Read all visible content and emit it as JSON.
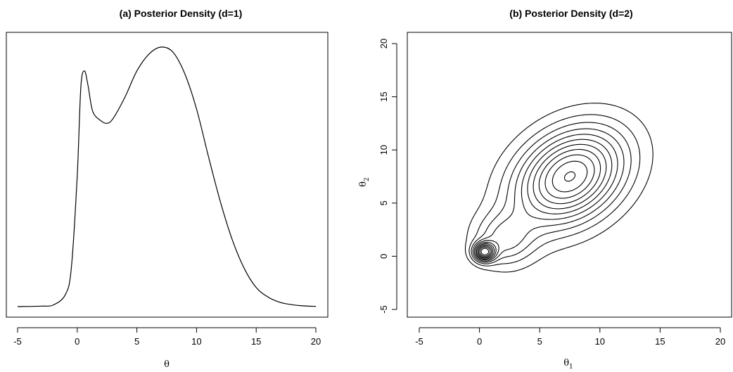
{
  "chart_data": [
    {
      "type": "line",
      "title": "(a) Posterior Density (d=1)",
      "xlabel": "θ",
      "ylabel": "",
      "xlim": [
        -5,
        20
      ],
      "xticks": [
        -5,
        0,
        5,
        10,
        15,
        20
      ],
      "yaxis_shown": false,
      "series": [
        {
          "x": [
            -5,
            -3,
            -2,
            -1,
            -0.5,
            0,
            0.3,
            0.6,
            0.9,
            1.3,
            2.0,
            2.5,
            3.0,
            4.0,
            5.0,
            6.0,
            7.0,
            8.0,
            9.0,
            10.0,
            11.0,
            12.0,
            13.0,
            14.0,
            15.0,
            16.0,
            17.0,
            18.0,
            19.0,
            20.0
          ],
          "y": [
            0.0,
            0.002,
            0.007,
            0.05,
            0.16,
            0.55,
            0.92,
            0.99,
            0.93,
            0.82,
            0.78,
            0.77,
            0.79,
            0.88,
            0.99,
            1.06,
            1.09,
            1.07,
            0.98,
            0.83,
            0.63,
            0.44,
            0.28,
            0.16,
            0.08,
            0.04,
            0.018,
            0.008,
            0.003,
            0.001
          ]
        }
      ]
    },
    {
      "type": "contour",
      "title": "(b) Posterior Density (d=2)",
      "xlabel": "θ",
      "xlabel_sub": "1",
      "ylabel": "θ",
      "ylabel_sub": "2",
      "xlim": [
        -5,
        20
      ],
      "ylim": [
        -5,
        20
      ],
      "xticks": [
        -5,
        0,
        5,
        10,
        15,
        20
      ],
      "yticks": [
        -5,
        0,
        5,
        10,
        15,
        20
      ],
      "main_mode": [
        7.5,
        7.5
      ],
      "minor_mode": [
        0.4,
        0.4
      ],
      "levels": 11
    }
  ]
}
